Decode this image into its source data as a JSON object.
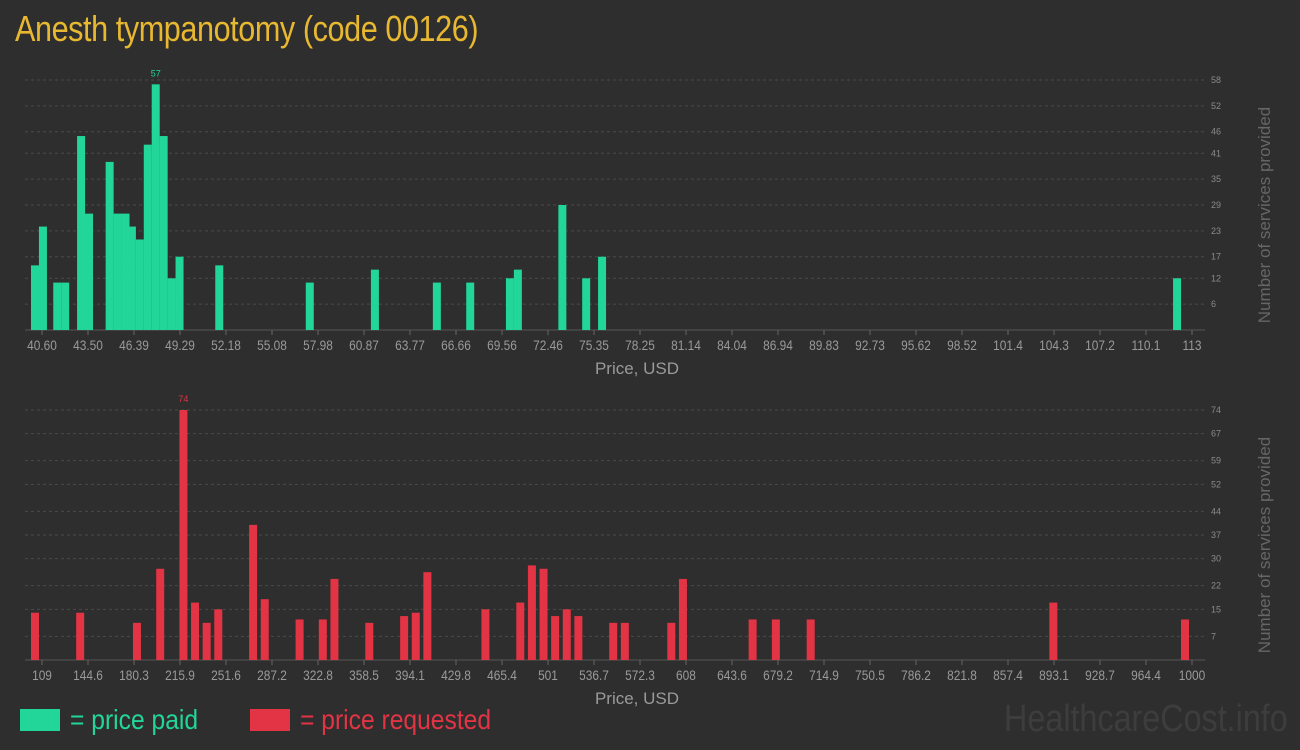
{
  "title": "Anesth tympanotomy (code 00126)",
  "watermark": "HealthcareCost.info",
  "colors": {
    "paid": "#22d598",
    "requested": "#e23445",
    "title": "#e8b830"
  },
  "legend": [
    {
      "label": "= price paid",
      "color": "#22d598"
    },
    {
      "label": "= price requested",
      "color": "#e23445"
    }
  ],
  "chart_data": [
    {
      "type": "bar",
      "series_label": "price paid",
      "color": "#22d598",
      "xlabel": "Price, USD",
      "ylabel": "Number of services provided",
      "xlim": [
        40.6,
        113
      ],
      "ylim": [
        0,
        58
      ],
      "yticks": [
        6,
        12,
        17,
        23,
        29,
        35,
        41,
        46,
        52,
        58
      ],
      "xtick_labels": [
        "40.60",
        "43.50",
        "46.39",
        "49.29",
        "52.18",
        "55.08",
        "57.98",
        "60.87",
        "63.77",
        "66.66",
        "69.56",
        "72.46",
        "75.35",
        "78.25",
        "81.14",
        "84.04",
        "86.94",
        "89.83",
        "92.73",
        "95.62",
        "98.52",
        "101.4",
        "104.3",
        "107.2",
        "110.1",
        "113"
      ],
      "max_label": "57",
      "bars": [
        {
          "x": 40.6,
          "y": 15
        },
        {
          "x": 41.1,
          "y": 24
        },
        {
          "x": 42.0,
          "y": 11
        },
        {
          "x": 42.5,
          "y": 11
        },
        {
          "x": 43.5,
          "y": 45
        },
        {
          "x": 44.0,
          "y": 27
        },
        {
          "x": 45.3,
          "y": 39
        },
        {
          "x": 45.8,
          "y": 27
        },
        {
          "x": 46.3,
          "y": 27
        },
        {
          "x": 46.7,
          "y": 24
        },
        {
          "x": 47.2,
          "y": 21
        },
        {
          "x": 47.7,
          "y": 43
        },
        {
          "x": 48.2,
          "y": 57
        },
        {
          "x": 48.7,
          "y": 45
        },
        {
          "x": 49.2,
          "y": 12
        },
        {
          "x": 49.7,
          "y": 17
        },
        {
          "x": 52.2,
          "y": 15
        },
        {
          "x": 57.9,
          "y": 11
        },
        {
          "x": 62.0,
          "y": 14
        },
        {
          "x": 65.9,
          "y": 11
        },
        {
          "x": 68.0,
          "y": 11
        },
        {
          "x": 70.5,
          "y": 12
        },
        {
          "x": 71.0,
          "y": 14
        },
        {
          "x": 73.8,
          "y": 29
        },
        {
          "x": 75.3,
          "y": 12
        },
        {
          "x": 76.3,
          "y": 17
        },
        {
          "x": 112.5,
          "y": 12
        }
      ]
    },
    {
      "type": "bar",
      "series_label": "price requested",
      "color": "#e23445",
      "xlabel": "Price, USD",
      "ylabel": "Number of services provided",
      "xlim": [
        109,
        1000
      ],
      "ylim": [
        0,
        74
      ],
      "yticks": [
        7,
        15,
        22,
        30,
        37,
        44,
        52,
        59,
        67,
        74
      ],
      "xtick_labels": [
        "109",
        "144.6",
        "180.3",
        "215.9",
        "251.6",
        "287.2",
        "322.8",
        "358.5",
        "394.1",
        "429.8",
        "465.4",
        "501",
        "536.7",
        "572.3",
        "608",
        "643.6",
        "679.2",
        "714.9",
        "750.5",
        "786.2",
        "821.8",
        "857.4",
        "893.1",
        "928.7",
        "964.4",
        "1000"
      ],
      "max_label": "74",
      "bars": [
        {
          "x": 109,
          "y": 14
        },
        {
          "x": 144,
          "y": 14
        },
        {
          "x": 188,
          "y": 11
        },
        {
          "x": 206,
          "y": 27
        },
        {
          "x": 224,
          "y": 74
        },
        {
          "x": 233,
          "y": 17
        },
        {
          "x": 242,
          "y": 11
        },
        {
          "x": 251,
          "y": 15
        },
        {
          "x": 278,
          "y": 40
        },
        {
          "x": 287,
          "y": 18
        },
        {
          "x": 314,
          "y": 12
        },
        {
          "x": 332,
          "y": 12
        },
        {
          "x": 341,
          "y": 24
        },
        {
          "x": 368,
          "y": 11
        },
        {
          "x": 395,
          "y": 13
        },
        {
          "x": 404,
          "y": 14
        },
        {
          "x": 413,
          "y": 26
        },
        {
          "x": 458,
          "y": 15
        },
        {
          "x": 485,
          "y": 17
        },
        {
          "x": 494,
          "y": 28
        },
        {
          "x": 503,
          "y": 27
        },
        {
          "x": 512,
          "y": 13
        },
        {
          "x": 521,
          "y": 15
        },
        {
          "x": 530,
          "y": 13
        },
        {
          "x": 557,
          "y": 11
        },
        {
          "x": 566,
          "y": 11
        },
        {
          "x": 602,
          "y": 11
        },
        {
          "x": 611,
          "y": 24
        },
        {
          "x": 665,
          "y": 12
        },
        {
          "x": 683,
          "y": 12
        },
        {
          "x": 710,
          "y": 12
        },
        {
          "x": 898,
          "y": 17
        },
        {
          "x": 1000,
          "y": 12
        }
      ]
    }
  ]
}
